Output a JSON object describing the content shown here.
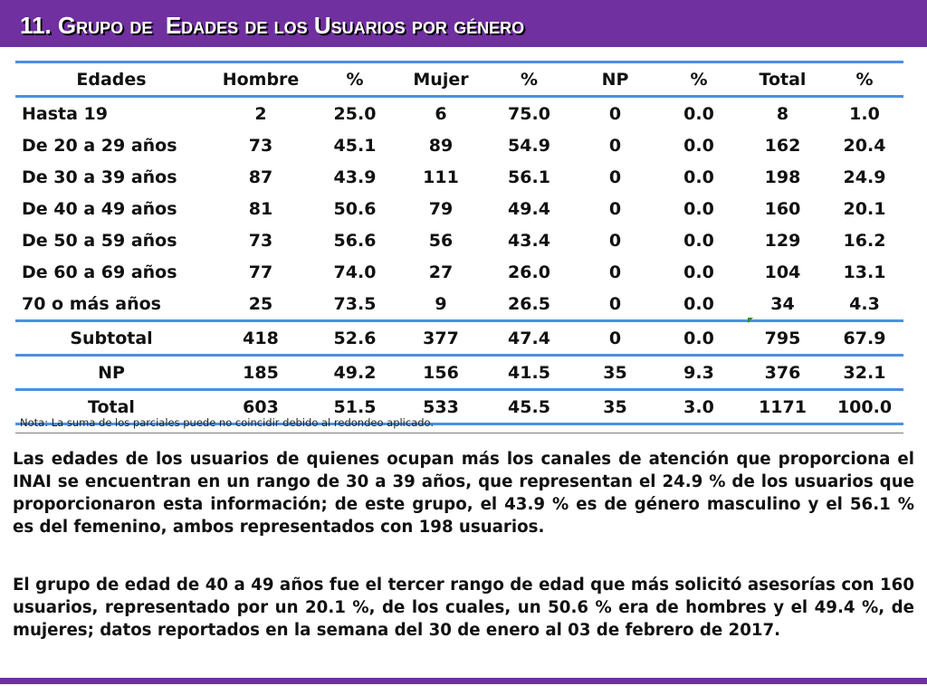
{
  "title": "11. Grupo de  Edades de los Usuarios por género",
  "colors": {
    "title_bar": "#7030a0",
    "table_rule": "#4a90e2",
    "text": "#111111"
  },
  "table": {
    "headers": [
      "Edades",
      "Hombre",
      "%",
      "Mujer",
      "%",
      "NP",
      "%",
      "Total",
      "%"
    ],
    "rows": [
      [
        "Hasta 19",
        "2",
        "25.0",
        "6",
        "75.0",
        "0",
        "0.0",
        "8",
        "1.0"
      ],
      [
        "De 20 a 29 años",
        "73",
        "45.1",
        "89",
        "54.9",
        "0",
        "0.0",
        "162",
        "20.4"
      ],
      [
        "De 30 a 39 años",
        "87",
        "43.9",
        "111",
        "56.1",
        "0",
        "0.0",
        "198",
        "24.9"
      ],
      [
        "De 40 a 49 años",
        "81",
        "50.6",
        "79",
        "49.4",
        "0",
        "0.0",
        "160",
        "20.1"
      ],
      [
        "De 50 a 59 años",
        "73",
        "56.6",
        "56",
        "43.4",
        "0",
        "0.0",
        "129",
        "16.2"
      ],
      [
        "De 60 a 69 años",
        "77",
        "74.0",
        "27",
        "26.0",
        "0",
        "0.0",
        "104",
        "13.1"
      ],
      [
        "70 o más años",
        "25",
        "73.5",
        "9",
        "26.5",
        "0",
        "0.0",
        "34",
        "4.3"
      ]
    ],
    "summary": [
      [
        "Subtotal",
        "418",
        "52.6",
        "377",
        "47.4",
        "0",
        "0.0",
        "795",
        "67.9"
      ],
      [
        "NP",
        "185",
        "49.2",
        "156",
        "41.5",
        "35",
        "9.3",
        "376",
        "32.1"
      ],
      [
        "Total",
        "603",
        "51.5",
        "533",
        "45.5",
        "35",
        "3.0",
        "1171",
        "100.0"
      ]
    ]
  },
  "note": "Nota: La suma de los parciales puede no coincidir debido al redondeo aplicado.",
  "paragraphs": [
    "Las edades de los usuarios de quienes ocupan más los canales de atención que proporciona el INAI se encuentran en un rango de 30 a 39 años, que representan el 24.9 % de los usuarios que proporcionaron esta información; de este grupo, el 43.9 % es de género masculino y el 56.1 % es del femenino, ambos representados con 198 usuarios.",
    "El grupo de edad de 40 a 49 años fue el tercer rango de edad que más solicitó asesorías con 160 usuarios, representado por un 20.1 %, de los cuales, un 50.6 % era de hombres y el 49.4 %, de mujeres; datos reportados en la semana del 30 de enero al 03 de febrero de 2017."
  ]
}
